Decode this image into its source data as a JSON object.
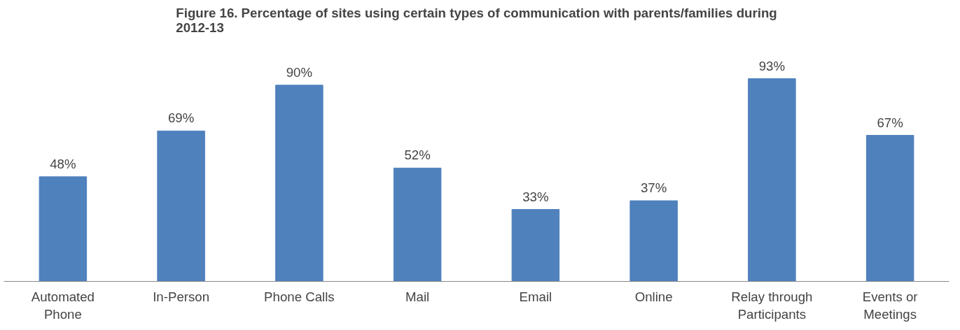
{
  "chart_data": {
    "type": "bar",
    "title": "Figure 16. Percentage of sites using certain types of communication with parents/families during 2012-13",
    "categories": [
      "Automated Phone",
      "In-Person",
      "Phone Calls",
      "Mail",
      "Email",
      "Online",
      "Relay through Participants",
      "Events or Meetings"
    ],
    "values": [
      48,
      69,
      90,
      52,
      33,
      37,
      93,
      67
    ],
    "value_labels": [
      "48%",
      "69%",
      "90%",
      "52%",
      "33%",
      "37%",
      "93%",
      "67%"
    ],
    "color": "#4f81bd",
    "grid": false
  }
}
